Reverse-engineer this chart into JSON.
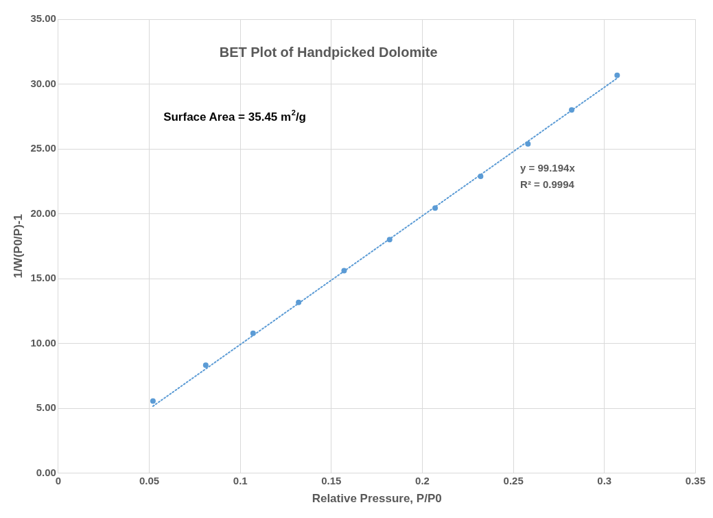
{
  "chart_data": {
    "type": "scatter",
    "title": "BET Plot of Handpicked Dolomite",
    "xlabel": "Relative Pressure, P/P0",
    "ylabel": "1/W(P0/P)-1",
    "annotations": [
      "Surface Area = 35.45 m$^{2}$/g",
      "y = 99.194x",
      "R² = 0.9994"
    ],
    "series": [
      {
        "type": "scatter",
        "color": "#5b9bd5",
        "x": [
          0.052,
          0.081,
          0.107,
          0.132,
          0.157,
          0.182,
          0.207,
          0.232,
          0.258,
          0.282,
          0.307
        ],
        "values": [
          5.56,
          8.33,
          10.78,
          13.17,
          15.61,
          18.0,
          20.44,
          22.89,
          25.39,
          28.0,
          30.67
        ]
      },
      {
        "type": "line",
        "color": "#5b9bd5",
        "line_style": "dotted",
        "marker": "none",
        "x": [
          0.052,
          0.307
        ],
        "values": [
          5.16,
          30.45
        ]
      }
    ],
    "marker": "circle",
    "grid": true,
    "legend": false,
    "xlim": [
      0,
      0.35
    ],
    "xticks": [
      0,
      0.05,
      0.1,
      0.15,
      0.2,
      0.25,
      0.3,
      0.35
    ],
    "ylim": [
      0,
      35
    ],
    "yticks": [
      {
        "value": 0,
        "label": "0.00"
      },
      {
        "value": 5,
        "label": "5.00"
      },
      {
        "value": 10,
        "label": "10.00"
      },
      {
        "value": 15,
        "label": "15.00"
      },
      {
        "value": 20,
        "label": "20.00"
      },
      {
        "value": 25,
        "label": "25.00"
      },
      {
        "value": 30,
        "label": "30.00"
      },
      {
        "value": 35,
        "label": "35.00"
      }
    ]
  }
}
